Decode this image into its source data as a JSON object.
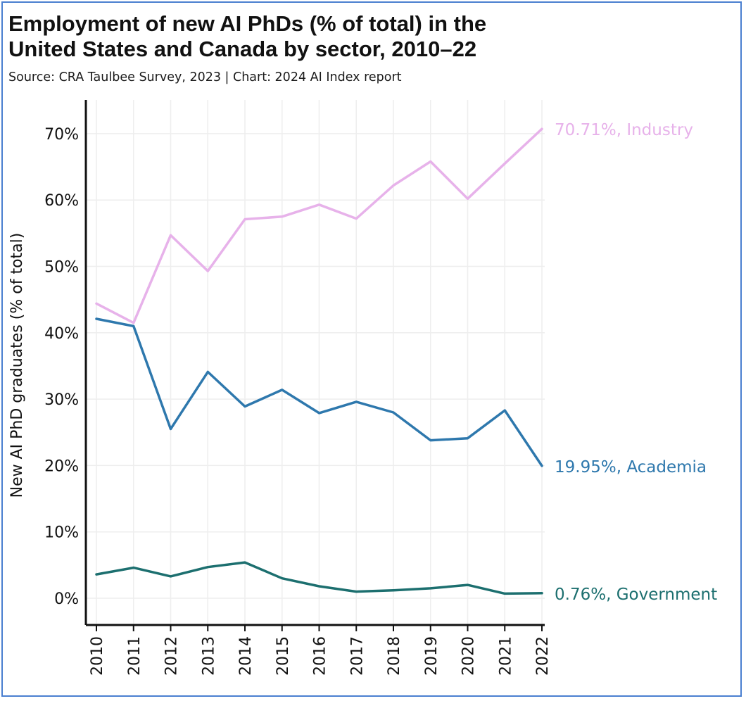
{
  "header": {
    "title_line1": "Employment of new AI PhDs (% of total) in the",
    "title_line2": "United States and Canada by sector, 2010–22",
    "subtitle": "Source: CRA Taulbee Survey, 2023 | Chart: 2024 AI Index report"
  },
  "chart_data": {
    "type": "line",
    "title": "Employment of new AI PhDs (% of total) in the United States and Canada by sector, 2010–22",
    "subtitle": "Source: CRA Taulbee Survey, 2023 | Chart: 2024 AI Index report",
    "xlabel": "",
    "ylabel": "New AI PhD graduates (% of total)",
    "x": [
      "2010",
      "2011",
      "2012",
      "2013",
      "2014",
      "2015",
      "2016",
      "2017",
      "2018",
      "2019",
      "2020",
      "2021",
      "2022"
    ],
    "y_ticks": [
      "0%",
      "10%",
      "20%",
      "30%",
      "40%",
      "50%",
      "60%",
      "70%"
    ],
    "ylim": [
      0,
      75
    ],
    "grid": true,
    "series": [
      {
        "name": "Industry",
        "color": "#e7b2ea",
        "end_label": "70.71%, Industry",
        "values": [
          44.4,
          41.5,
          54.7,
          49.3,
          57.1,
          57.5,
          59.3,
          57.2,
          62.2,
          65.8,
          60.2,
          65.5,
          70.71
        ]
      },
      {
        "name": "Academia",
        "color": "#2e78ad",
        "end_label": "19.95%, Academia",
        "values": [
          42.1,
          41.0,
          25.5,
          34.1,
          28.9,
          31.4,
          27.9,
          29.6,
          28.0,
          23.8,
          24.1,
          28.3,
          19.95
        ]
      },
      {
        "name": "Government",
        "color": "#1c6f6f",
        "end_label": "0.76%, Government",
        "values": [
          3.6,
          4.6,
          3.3,
          4.7,
          5.4,
          3.0,
          1.8,
          1.0,
          1.2,
          1.5,
          2.0,
          0.7,
          0.76
        ]
      }
    ]
  }
}
